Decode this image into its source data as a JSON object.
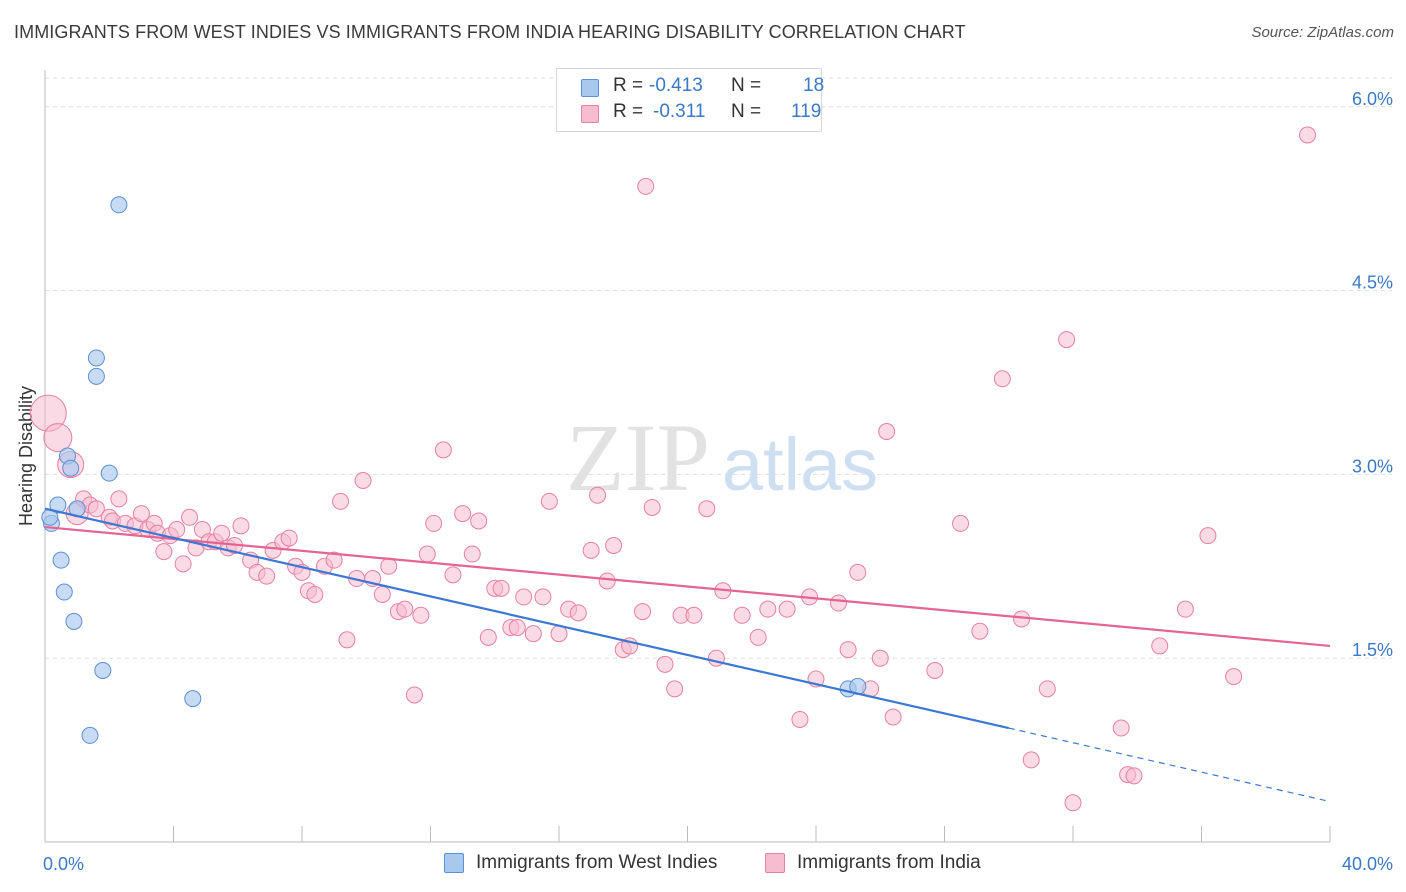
{
  "header": {
    "title": "IMMIGRANTS FROM WEST INDIES VS IMMIGRANTS FROM INDIA HEARING DISABILITY CORRELATION CHART",
    "source": "Source: ZipAtlas.com"
  },
  "legend": {
    "r_label": "R =",
    "n_label": "N =",
    "rows": [
      {
        "r": "-0.413",
        "n": "18"
      },
      {
        "r": "-0.311",
        "n": "119"
      }
    ]
  },
  "watermark": {
    "zip": "ZIP",
    "atlas": "atlas"
  },
  "colors": {
    "blue_fill": "#a9c8ee",
    "blue_stroke": "#5b8fd6",
    "blue_line": "#3a78d4",
    "pink_fill": "#f6bcd0",
    "pink_stroke": "#e87fa3",
    "pink_line": "#e46593",
    "tick_label": "#3a78c8",
    "grid": "#dddddd"
  },
  "chart_data": {
    "type": "scatter",
    "title": "IMMIGRANTS FROM WEST INDIES VS IMMIGRANTS FROM INDIA HEARING DISABILITY CORRELATION CHART",
    "xlabel": "",
    "ylabel": "Hearing Disability",
    "xlim": [
      0,
      40
    ],
    "ylim": [
      0,
      6.3
    ],
    "x_tick_labels": [
      "0.0%",
      "40.0%"
    ],
    "y_ticks": [
      1.5,
      3.0,
      4.5,
      6.0
    ],
    "y_tick_labels": [
      "1.5%",
      "3.0%",
      "4.5%",
      "6.0%"
    ],
    "grid": true,
    "legend_position": "top-center",
    "series": [
      {
        "name": "Immigrants from West Indies",
        "color": "#a9c8ee",
        "points": [
          [
            0.2,
            2.6
          ],
          [
            0.4,
            2.75
          ],
          [
            0.5,
            2.3
          ],
          [
            0.6,
            2.04
          ],
          [
            0.7,
            3.15
          ],
          [
            0.8,
            3.05
          ],
          [
            0.9,
            1.8
          ],
          [
            1.0,
            2.72
          ],
          [
            1.4,
            0.87
          ],
          [
            1.6,
            3.8
          ],
          [
            1.6,
            3.95
          ],
          [
            1.8,
            1.4
          ],
          [
            2.0,
            3.01
          ],
          [
            2.3,
            5.2
          ],
          [
            4.6,
            1.17
          ],
          [
            25.0,
            1.25
          ],
          [
            25.3,
            1.27
          ],
          [
            0.15,
            2.65
          ]
        ],
        "trend": {
          "x0": 0,
          "y0": 2.72,
          "x1": 30.0,
          "y1": 0.93,
          "x_dash_end": 40.0,
          "y_dash_end": 0.33
        }
      },
      {
        "name": "Immigrants from India",
        "color": "#f6bcd0",
        "points": [
          [
            0.1,
            3.5
          ],
          [
            0.4,
            3.3
          ],
          [
            0.8,
            3.08
          ],
          [
            1.0,
            2.68
          ],
          [
            1.2,
            2.8
          ],
          [
            1.4,
            2.75
          ],
          [
            1.6,
            2.72
          ],
          [
            2.0,
            2.65
          ],
          [
            2.1,
            2.62
          ],
          [
            2.3,
            2.8
          ],
          [
            2.5,
            2.6
          ],
          [
            2.8,
            2.58
          ],
          [
            3.0,
            2.68
          ],
          [
            3.2,
            2.55
          ],
          [
            3.4,
            2.6
          ],
          [
            3.5,
            2.52
          ],
          [
            3.7,
            2.37
          ],
          [
            3.9,
            2.5
          ],
          [
            4.1,
            2.55
          ],
          [
            4.3,
            2.27
          ],
          [
            4.5,
            2.65
          ],
          [
            4.7,
            2.4
          ],
          [
            4.9,
            2.55
          ],
          [
            5.1,
            2.45
          ],
          [
            5.3,
            2.45
          ],
          [
            5.5,
            2.52
          ],
          [
            5.7,
            2.4
          ],
          [
            5.9,
            2.42
          ],
          [
            6.1,
            2.58
          ],
          [
            6.4,
            2.3
          ],
          [
            6.6,
            2.2
          ],
          [
            6.9,
            2.17
          ],
          [
            7.1,
            2.38
          ],
          [
            7.4,
            2.45
          ],
          [
            7.6,
            2.48
          ],
          [
            7.8,
            2.25
          ],
          [
            8.0,
            2.2
          ],
          [
            8.2,
            2.05
          ],
          [
            8.4,
            2.02
          ],
          [
            8.7,
            2.25
          ],
          [
            9.0,
            2.3
          ],
          [
            9.2,
            2.78
          ],
          [
            9.4,
            1.65
          ],
          [
            9.7,
            2.15
          ],
          [
            9.9,
            2.95
          ],
          [
            10.2,
            2.15
          ],
          [
            10.5,
            2.02
          ],
          [
            10.7,
            2.25
          ],
          [
            11.0,
            1.88
          ],
          [
            11.2,
            1.9
          ],
          [
            11.5,
            1.2
          ],
          [
            11.7,
            1.85
          ],
          [
            11.9,
            2.35
          ],
          [
            12.1,
            2.6
          ],
          [
            12.4,
            3.2
          ],
          [
            12.7,
            2.18
          ],
          [
            13.0,
            2.68
          ],
          [
            13.3,
            2.35
          ],
          [
            13.5,
            2.62
          ],
          [
            13.8,
            1.67
          ],
          [
            14.0,
            2.07
          ],
          [
            14.2,
            2.07
          ],
          [
            14.5,
            1.75
          ],
          [
            14.7,
            1.75
          ],
          [
            14.9,
            2.0
          ],
          [
            15.2,
            1.7
          ],
          [
            15.5,
            2.0
          ],
          [
            15.7,
            2.78
          ],
          [
            16.0,
            1.7
          ],
          [
            16.3,
            1.9
          ],
          [
            16.6,
            1.87
          ],
          [
            17.0,
            2.38
          ],
          [
            17.2,
            2.83
          ],
          [
            17.5,
            2.13
          ],
          [
            17.7,
            2.42
          ],
          [
            18.0,
            1.57
          ],
          [
            18.2,
            1.6
          ],
          [
            18.6,
            1.88
          ],
          [
            18.9,
            2.73
          ],
          [
            19.3,
            1.45
          ],
          [
            19.6,
            1.25
          ],
          [
            19.8,
            1.85
          ],
          [
            20.2,
            1.85
          ],
          [
            20.6,
            2.72
          ],
          [
            20.9,
            1.5
          ],
          [
            21.1,
            2.05
          ],
          [
            21.7,
            1.85
          ],
          [
            22.2,
            1.67
          ],
          [
            22.5,
            1.9
          ],
          [
            23.1,
            1.9
          ],
          [
            23.5,
            1.0
          ],
          [
            23.8,
            2.0
          ],
          [
            24.0,
            1.33
          ],
          [
            24.7,
            1.95
          ],
          [
            25.0,
            1.57
          ],
          [
            25.3,
            2.2
          ],
          [
            25.7,
            1.25
          ],
          [
            26.0,
            1.5
          ],
          [
            26.2,
            3.35
          ],
          [
            26.4,
            1.02
          ],
          [
            27.7,
            1.4
          ],
          [
            28.5,
            2.6
          ],
          [
            29.1,
            1.72
          ],
          [
            29.8,
            3.78
          ],
          [
            30.4,
            1.82
          ],
          [
            30.7,
            0.67
          ],
          [
            31.2,
            1.25
          ],
          [
            31.8,
            4.1
          ],
          [
            32.0,
            0.32
          ],
          [
            33.5,
            0.93
          ],
          [
            33.7,
            0.55
          ],
          [
            33.9,
            0.54
          ],
          [
            34.7,
            1.6
          ],
          [
            35.5,
            1.9
          ],
          [
            36.2,
            2.5
          ],
          [
            37.0,
            1.35
          ],
          [
            39.3,
            5.77
          ],
          [
            18.7,
            5.35
          ]
        ],
        "trend": {
          "x0": 0,
          "y0": 2.57,
          "x1": 40.0,
          "y1": 1.6
        }
      }
    ]
  }
}
